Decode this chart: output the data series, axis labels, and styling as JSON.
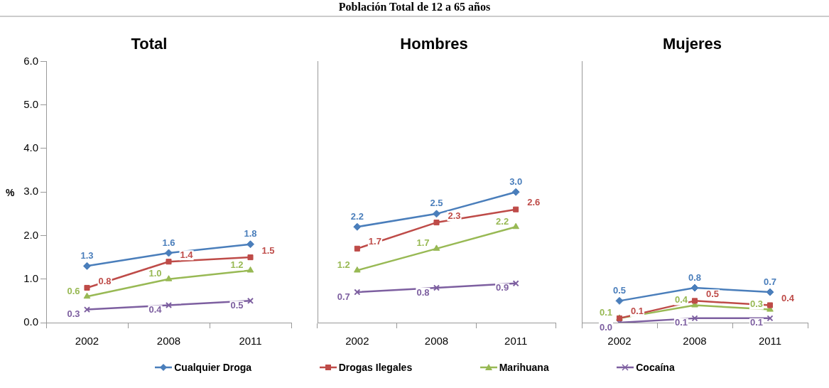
{
  "chart_data": [
    {
      "type": "line",
      "title": "Total",
      "ylabel": "%",
      "annotations": [
        "Población Total de 12 a 65 años"
      ],
      "categories": [
        "2002",
        "2008",
        "2011"
      ],
      "ylim": [
        0,
        6
      ],
      "yticks": [
        {
          "value": 0,
          "label": "0.0"
        },
        {
          "value": 1,
          "label": "1.0"
        },
        {
          "value": 2,
          "label": "2.0"
        },
        {
          "value": 3,
          "label": "3.0"
        },
        {
          "value": 4,
          "label": "4.0"
        },
        {
          "value": 5,
          "label": "5.0"
        },
        {
          "value": 6,
          "label": "6.0"
        }
      ],
      "grid": false,
      "legend": "bottom",
      "line_style": "solid",
      "series": [
        {
          "name": "Cualquier Droga",
          "color": "#4a7ebb",
          "marker": "diamond",
          "values": [
            1.3,
            1.6,
            1.8
          ],
          "value_labels": [
            "1.3",
            "1.6",
            "1.8"
          ]
        },
        {
          "name": "Drogas Ilegales",
          "color": "#be4b48",
          "marker": "square",
          "values": [
            0.8,
            1.4,
            1.5
          ],
          "value_labels": [
            "0.8",
            "1.4",
            "1.5"
          ]
        },
        {
          "name": "Marihuana",
          "color": "#98b954",
          "marker": "triangle",
          "values": [
            0.6,
            1.0,
            1.2
          ],
          "value_labels": [
            "0.6",
            "1.0",
            "1.2"
          ]
        },
        {
          "name": "Cocaína",
          "color": "#7d5fa0",
          "marker": "cross",
          "values": [
            0.3,
            0.4,
            0.5
          ],
          "value_labels": [
            "0.3",
            "0.4",
            "0.5"
          ]
        }
      ]
    },
    {
      "type": "line",
      "title": "Hombres",
      "categories": [
        "2002",
        "2008",
        "2011"
      ],
      "ylim": [
        0,
        6
      ],
      "tick_labels": "x",
      "grid": false,
      "line_style": "solid",
      "series": [
        {
          "color": "#4a7ebb",
          "marker": "diamond",
          "values": [
            2.2,
            2.5,
            3.0
          ],
          "value_labels": [
            "2.2",
            "2.5",
            "3.0"
          ]
        },
        {
          "color": "#be4b48",
          "marker": "square",
          "values": [
            1.7,
            2.3,
            2.6
          ],
          "value_labels": [
            "1.7",
            "2.3",
            "2.6"
          ]
        },
        {
          "color": "#98b954",
          "marker": "triangle",
          "values": [
            1.2,
            1.7,
            2.2
          ],
          "value_labels": [
            "1.2",
            "1.7",
            "2.2"
          ]
        },
        {
          "color": "#7d5fa0",
          "marker": "cross",
          "values": [
            0.7,
            0.8,
            0.9
          ],
          "value_labels": [
            "0.7",
            "0.8",
            "0.9"
          ]
        }
      ]
    },
    {
      "type": "line",
      "title": "Mujeres",
      "categories": [
        "2002",
        "2008",
        "2011"
      ],
      "ylim": [
        0,
        6
      ],
      "tick_labels": "x",
      "grid": false,
      "line_style": "solid",
      "series": [
        {
          "color": "#4a7ebb",
          "marker": "diamond",
          "values": [
            0.5,
            0.8,
            0.7
          ],
          "value_labels": [
            "0.5",
            "0.8",
            "0.7"
          ]
        },
        {
          "color": "#be4b48",
          "marker": "square",
          "values": [
            0.1,
            0.5,
            0.4
          ],
          "value_labels": [
            "0.1",
            "0.5",
            "0.4"
          ]
        },
        {
          "color": "#98b954",
          "marker": "triangle",
          "values": [
            0.1,
            0.4,
            0.3
          ],
          "value_labels": [
            "0.1",
            "0.4",
            "0.3"
          ]
        },
        {
          "color": "#7d5fa0",
          "marker": "cross",
          "values": [
            0.0,
            0.1,
            0.1
          ],
          "value_labels": [
            "0.0",
            "0.1",
            "0.1"
          ]
        }
      ]
    }
  ]
}
